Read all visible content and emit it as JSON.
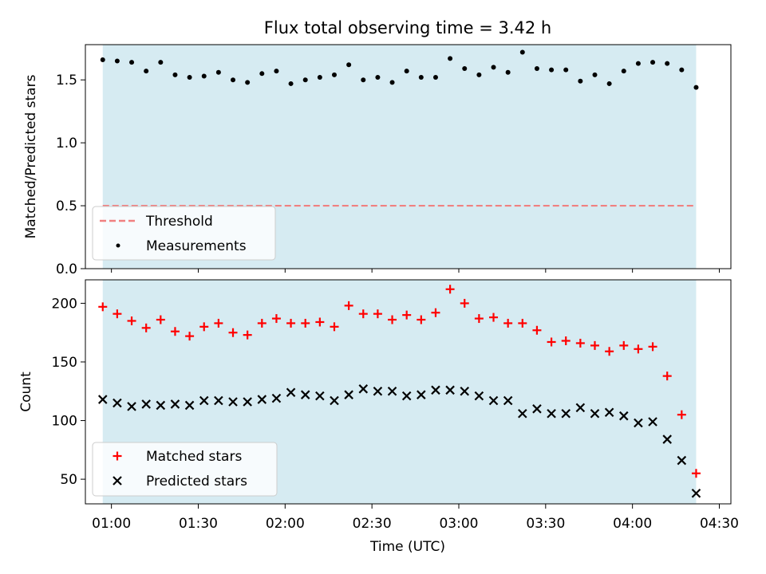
{
  "title": "Flux total observing time = 3.42 h",
  "colors": {
    "band": "#add8e6",
    "threshold": "#f08080",
    "measurement": "#000000",
    "matched": "#ff0000",
    "predicted": "#000000"
  },
  "chart_data": [
    {
      "type": "scatter",
      "panel": "top",
      "title": "Flux total observing time = 3.42 h",
      "xlabel": "",
      "ylabel": "Matched/Predicted stars",
      "ylim": [
        0,
        1.78
      ],
      "yticks": [
        0.0,
        0.5,
        1.0,
        1.5
      ],
      "ytick_labels": [
        "0.0",
        "0.5",
        "1.0",
        "1.5"
      ],
      "xlim": [
        "00:51",
        "04:34"
      ],
      "xticks": [
        "01:00",
        "01:30",
        "02:00",
        "02:30",
        "03:00",
        "03:30",
        "04:00",
        "04:30"
      ],
      "shaded_span": [
        "00:57",
        "04:22"
      ],
      "grid": false,
      "legend_placement": "lower-left",
      "threshold": {
        "name": "Threshold",
        "value": 0.5,
        "style": "dashed"
      },
      "series": [
        {
          "name": "Measurements",
          "marker": "dot",
          "x": [
            "00:57",
            "01:02",
            "01:07",
            "01:12",
            "01:17",
            "01:22",
            "01:27",
            "01:32",
            "01:37",
            "01:42",
            "01:47",
            "01:52",
            "01:57",
            "02:02",
            "02:07",
            "02:12",
            "02:17",
            "02:22",
            "02:27",
            "02:32",
            "02:37",
            "02:42",
            "02:47",
            "02:52",
            "02:57",
            "03:02",
            "03:07",
            "03:12",
            "03:17",
            "03:22",
            "03:27",
            "03:32",
            "03:37",
            "03:42",
            "03:47",
            "03:52",
            "03:57",
            "04:02",
            "04:07",
            "04:12",
            "04:17",
            "04:22"
          ],
          "y": [
            1.66,
            1.65,
            1.64,
            1.57,
            1.64,
            1.54,
            1.52,
            1.53,
            1.56,
            1.5,
            1.48,
            1.55,
            1.57,
            1.47,
            1.5,
            1.52,
            1.54,
            1.62,
            1.5,
            1.52,
            1.48,
            1.57,
            1.52,
            1.52,
            1.67,
            1.59,
            1.54,
            1.6,
            1.56,
            1.72,
            1.59,
            1.58,
            1.58,
            1.49,
            1.54,
            1.47,
            1.57,
            1.63,
            1.64,
            1.63,
            1.58,
            1.44
          ]
        }
      ]
    },
    {
      "type": "scatter",
      "panel": "bottom",
      "xlabel": "Time (UTC)",
      "ylabel": "Count",
      "ylim": [
        29,
        220
      ],
      "yticks": [
        50,
        100,
        150,
        200
      ],
      "ytick_labels": [
        "50",
        "100",
        "150",
        "200"
      ],
      "xlim": [
        "00:51",
        "04:34"
      ],
      "xticks": [
        "01:00",
        "01:30",
        "02:00",
        "02:30",
        "03:00",
        "03:30",
        "04:00",
        "04:30"
      ],
      "xtick_labels": [
        "01:00",
        "01:30",
        "02:00",
        "02:30",
        "03:00",
        "03:30",
        "04:00",
        "04:30"
      ],
      "shaded_span": [
        "00:57",
        "04:22"
      ],
      "grid": false,
      "legend_placement": "lower-left",
      "x": [
        "00:57",
        "01:02",
        "01:07",
        "01:12",
        "01:17",
        "01:22",
        "01:27",
        "01:32",
        "01:37",
        "01:42",
        "01:47",
        "01:52",
        "01:57",
        "02:02",
        "02:07",
        "02:12",
        "02:17",
        "02:22",
        "02:27",
        "02:32",
        "02:37",
        "02:42",
        "02:47",
        "02:52",
        "02:57",
        "03:02",
        "03:07",
        "03:12",
        "03:17",
        "03:22",
        "03:27",
        "03:32",
        "03:37",
        "03:42",
        "03:47",
        "03:52",
        "03:57",
        "04:02",
        "04:07",
        "04:12",
        "04:17",
        "04:22"
      ],
      "series": [
        {
          "name": "Matched stars",
          "marker": "plus",
          "values": [
            197,
            191,
            185,
            179,
            186,
            176,
            172,
            180,
            183,
            175,
            173,
            183,
            187,
            183,
            183,
            184,
            180,
            198,
            191,
            191,
            186,
            190,
            186,
            192,
            212,
            200,
            187,
            188,
            183,
            183,
            177,
            167,
            168,
            166,
            164,
            159,
            164,
            161,
            163,
            138,
            105,
            55
          ]
        },
        {
          "name": "Predicted stars",
          "marker": "x",
          "values": [
            118,
            115,
            112,
            114,
            113,
            114,
            113,
            117,
            117,
            116,
            116,
            118,
            119,
            124,
            122,
            121,
            117,
            122,
            127,
            125,
            125,
            121,
            122,
            126,
            126,
            125,
            121,
            117,
            117,
            106,
            110,
            106,
            106,
            111,
            106,
            107,
            104,
            98,
            99,
            84,
            66,
            38
          ]
        }
      ]
    }
  ]
}
